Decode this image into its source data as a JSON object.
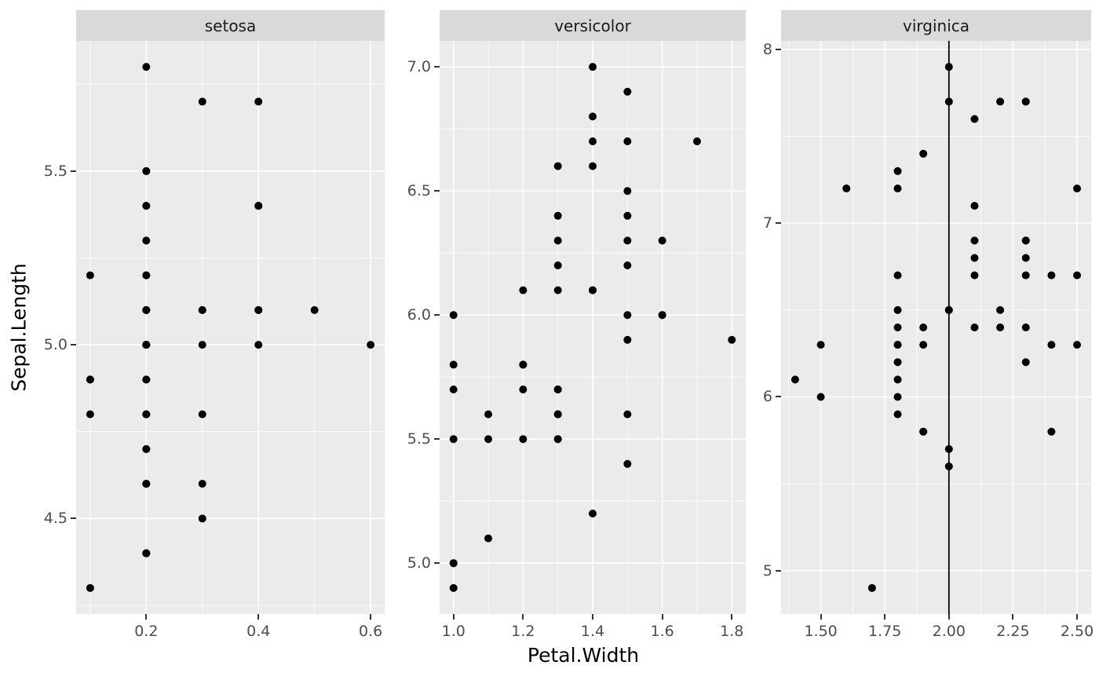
{
  "figure": {
    "background": "#FFFFFF",
    "panel_background": "#EBEBEB",
    "strip_background": "#D9D9D9",
    "strip_text_color": "#1A1A1A",
    "grid_color": "#FFFFFF",
    "point_color": "#000000",
    "axis_text_color": "#4D4D4D",
    "axis_title_color": "#000000",
    "tick_mark_color": "#333333"
  },
  "chart_data": {
    "type": "scatter",
    "title": "",
    "xlabel": "Petal.Width",
    "ylabel": "Sepal.Length",
    "facet_by": "Species",
    "free_scales": true,
    "grid": true,
    "legend_position": "none",
    "vline": {
      "facet": "virginica",
      "x": 2.0,
      "color": "#000000"
    },
    "facets": [
      {
        "label": "setosa",
        "x_domain": [
          0.075,
          0.625
        ],
        "y_domain": [
          4.225,
          5.875
        ],
        "x_ticks": [
          0.2,
          0.4,
          0.6
        ],
        "x_tick_labels": [
          "0.2",
          "0.4",
          "0.6"
        ],
        "y_ticks": [
          4.5,
          5.0,
          5.5
        ],
        "y_tick_labels": [
          "4.5",
          "5.0",
          "5.5"
        ],
        "points": [
          [
            0.2,
            5.1
          ],
          [
            0.2,
            4.9
          ],
          [
            0.2,
            4.7
          ],
          [
            0.2,
            4.6
          ],
          [
            0.2,
            5.0
          ],
          [
            0.4,
            5.4
          ],
          [
            0.3,
            4.6
          ],
          [
            0.2,
            5.0
          ],
          [
            0.2,
            4.4
          ],
          [
            0.1,
            4.9
          ],
          [
            0.2,
            5.4
          ],
          [
            0.2,
            4.8
          ],
          [
            0.1,
            4.8
          ],
          [
            0.1,
            4.3
          ],
          [
            0.2,
            5.8
          ],
          [
            0.4,
            5.7
          ],
          [
            0.4,
            5.4
          ],
          [
            0.3,
            5.1
          ],
          [
            0.3,
            5.7
          ],
          [
            0.3,
            5.1
          ],
          [
            0.2,
            5.4
          ],
          [
            0.4,
            5.1
          ],
          [
            0.2,
            4.6
          ],
          [
            0.5,
            5.1
          ],
          [
            0.2,
            4.8
          ],
          [
            0.2,
            5.0
          ],
          [
            0.4,
            5.0
          ],
          [
            0.2,
            5.2
          ],
          [
            0.2,
            5.2
          ],
          [
            0.2,
            4.7
          ],
          [
            0.2,
            4.8
          ],
          [
            0.4,
            5.4
          ],
          [
            0.1,
            5.2
          ],
          [
            0.2,
            5.5
          ],
          [
            0.2,
            4.9
          ],
          [
            0.2,
            5.0
          ],
          [
            0.2,
            5.5
          ],
          [
            0.1,
            4.9
          ],
          [
            0.2,
            4.4
          ],
          [
            0.2,
            5.1
          ],
          [
            0.3,
            5.0
          ],
          [
            0.3,
            4.5
          ],
          [
            0.2,
            4.4
          ],
          [
            0.6,
            5.0
          ],
          [
            0.4,
            5.1
          ],
          [
            0.3,
            4.8
          ],
          [
            0.2,
            5.1
          ],
          [
            0.2,
            4.6
          ],
          [
            0.2,
            5.3
          ],
          [
            0.2,
            5.0
          ]
        ]
      },
      {
        "label": "versicolor",
        "x_domain": [
          0.96,
          1.84
        ],
        "y_domain": [
          4.795,
          7.105
        ],
        "x_ticks": [
          1.0,
          1.2,
          1.4,
          1.6,
          1.8
        ],
        "x_tick_labels": [
          "1.0",
          "1.2",
          "1.4",
          "1.6",
          "1.8"
        ],
        "y_ticks": [
          5.0,
          5.5,
          6.0,
          6.5,
          7.0
        ],
        "y_tick_labels": [
          "5.0",
          "5.5",
          "6.0",
          "6.5",
          "7.0"
        ],
        "points": [
          [
            1.4,
            7.0
          ],
          [
            1.5,
            6.4
          ],
          [
            1.5,
            6.9
          ],
          [
            1.3,
            5.5
          ],
          [
            1.5,
            6.5
          ],
          [
            1.3,
            5.7
          ],
          [
            1.6,
            6.3
          ],
          [
            1.0,
            4.9
          ],
          [
            1.3,
            6.6
          ],
          [
            1.4,
            5.2
          ],
          [
            1.0,
            5.0
          ],
          [
            1.5,
            5.9
          ],
          [
            1.0,
            6.0
          ],
          [
            1.4,
            6.1
          ],
          [
            1.3,
            5.6
          ],
          [
            1.4,
            6.7
          ],
          [
            1.5,
            5.6
          ],
          [
            1.0,
            5.8
          ],
          [
            1.5,
            6.2
          ],
          [
            1.1,
            5.6
          ],
          [
            1.8,
            5.9
          ],
          [
            1.3,
            6.1
          ],
          [
            1.5,
            6.3
          ],
          [
            1.2,
            6.1
          ],
          [
            1.3,
            6.4
          ],
          [
            1.4,
            6.6
          ],
          [
            1.4,
            6.8
          ],
          [
            1.7,
            6.7
          ],
          [
            1.5,
            6.0
          ],
          [
            1.0,
            5.7
          ],
          [
            1.1,
            5.5
          ],
          [
            1.0,
            5.5
          ],
          [
            1.2,
            5.8
          ],
          [
            1.6,
            6.0
          ],
          [
            1.5,
            5.4
          ],
          [
            1.6,
            6.0
          ],
          [
            1.5,
            6.7
          ],
          [
            1.3,
            6.3
          ],
          [
            1.3,
            5.6
          ],
          [
            1.3,
            5.5
          ],
          [
            1.2,
            5.5
          ],
          [
            1.4,
            6.1
          ],
          [
            1.2,
            5.8
          ],
          [
            1.0,
            5.0
          ],
          [
            1.3,
            5.6
          ],
          [
            1.2,
            5.7
          ],
          [
            1.3,
            5.7
          ],
          [
            1.3,
            6.2
          ],
          [
            1.1,
            5.1
          ],
          [
            1.3,
            5.7
          ]
        ]
      },
      {
        "label": "virginica",
        "x_domain": [
          1.345,
          2.555
        ],
        "y_domain": [
          4.75,
          8.05
        ],
        "x_ticks": [
          1.5,
          1.75,
          2.0,
          2.25,
          2.5
        ],
        "x_tick_labels": [
          "1.50",
          "1.75",
          "2.00",
          "2.25",
          "2.50"
        ],
        "y_ticks": [
          5,
          6,
          7,
          8
        ],
        "y_tick_labels": [
          "5",
          "6",
          "7",
          "8"
        ],
        "points": [
          [
            2.5,
            6.3
          ],
          [
            1.9,
            5.8
          ],
          [
            2.1,
            7.1
          ],
          [
            1.8,
            6.3
          ],
          [
            2.2,
            6.5
          ],
          [
            2.1,
            7.6
          ],
          [
            1.7,
            4.9
          ],
          [
            1.8,
            7.3
          ],
          [
            1.8,
            6.7
          ],
          [
            2.5,
            7.2
          ],
          [
            2.0,
            6.5
          ],
          [
            1.9,
            6.4
          ],
          [
            2.1,
            6.8
          ],
          [
            2.0,
            5.7
          ],
          [
            2.4,
            5.8
          ],
          [
            2.3,
            6.4
          ],
          [
            1.8,
            6.5
          ],
          [
            2.2,
            7.7
          ],
          [
            2.3,
            7.7
          ],
          [
            1.5,
            6.0
          ],
          [
            2.3,
            6.9
          ],
          [
            2.0,
            5.6
          ],
          [
            2.0,
            7.7
          ],
          [
            1.8,
            6.3
          ],
          [
            2.1,
            6.7
          ],
          [
            1.8,
            7.2
          ],
          [
            1.8,
            6.2
          ],
          [
            1.8,
            6.1
          ],
          [
            2.1,
            6.4
          ],
          [
            1.6,
            7.2
          ],
          [
            1.9,
            7.4
          ],
          [
            2.0,
            7.9
          ],
          [
            2.2,
            6.4
          ],
          [
            1.5,
            6.3
          ],
          [
            1.4,
            6.1
          ],
          [
            2.3,
            7.7
          ],
          [
            2.4,
            6.3
          ],
          [
            1.8,
            6.4
          ],
          [
            1.8,
            6.0
          ],
          [
            2.1,
            6.9
          ],
          [
            2.4,
            6.7
          ],
          [
            2.3,
            6.9
          ],
          [
            1.9,
            5.8
          ],
          [
            2.3,
            6.8
          ],
          [
            2.5,
            6.7
          ],
          [
            2.3,
            6.7
          ],
          [
            1.9,
            6.3
          ],
          [
            2.0,
            6.5
          ],
          [
            2.3,
            6.2
          ],
          [
            1.8,
            5.9
          ]
        ]
      }
    ]
  }
}
